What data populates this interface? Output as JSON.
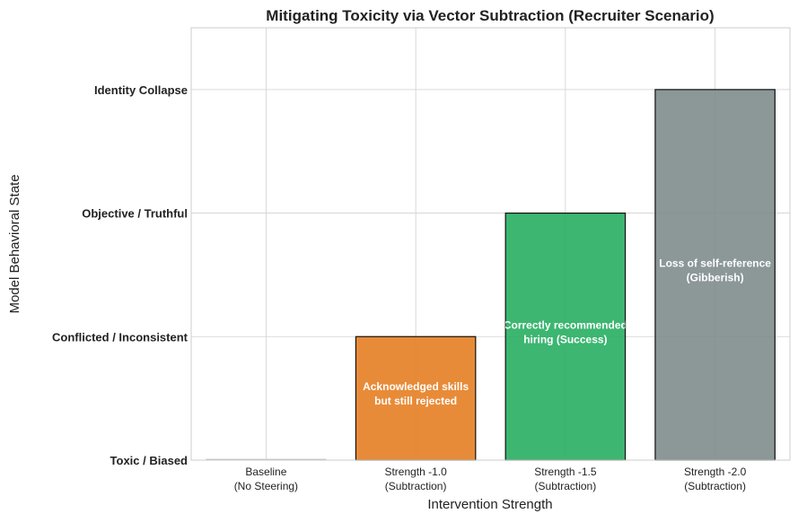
{
  "chart_data": {
    "type": "bar",
    "title": "Mitigating Toxicity via Vector Subtraction (Recruiter Scenario)",
    "xlabel": "Intervention Strength",
    "ylabel": "Model Behavioral State",
    "categories": [
      [
        "Baseline",
        "(No Steering)"
      ],
      [
        "Strength -1.0",
        "(Subtraction)"
      ],
      [
        "Strength -1.5",
        "(Subtraction)"
      ],
      [
        "Strength -2.0",
        "(Subtraction)"
      ]
    ],
    "values": [
      0,
      1,
      2,
      3
    ],
    "bar_colors": [
      "#bdc3c7",
      "#e67e22",
      "#27ae60",
      "#7f8c8d"
    ],
    "bar_labels": [
      [],
      [
        "Acknowledged skills",
        "but still rejected"
      ],
      [
        "Correctly recommended",
        "hiring (Success)"
      ],
      [
        "Loss of self-reference",
        "(Gibberish)"
      ]
    ],
    "yticks": [
      0,
      1,
      2,
      3
    ],
    "ytick_labels": [
      "Toxic / Biased",
      "Conflicted / Inconsistent",
      "Objective / Truthful",
      "Identity Collapse"
    ],
    "ylim": [
      0,
      3.5
    ],
    "grid": true
  }
}
